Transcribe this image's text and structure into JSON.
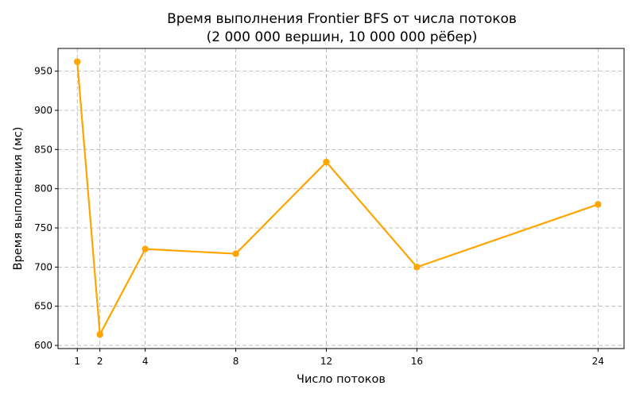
{
  "chart_data": {
    "type": "line",
    "title": "Время выполнения Frontier BFS от числа потоков",
    "subtitle": "(2 000 000 вершин, 10 000 000 рёбер)",
    "xlabel": "Число потоков",
    "ylabel": "Время выполнения (мс)",
    "x": [
      1,
      2,
      4,
      8,
      12,
      16,
      24
    ],
    "x_ticks": [
      1,
      2,
      4,
      8,
      12,
      16,
      24
    ],
    "y_ticks": [
      600,
      650,
      700,
      750,
      800,
      850,
      900,
      950
    ],
    "xlim": [
      0.15,
      25.15
    ],
    "ylim": [
      596,
      979
    ],
    "grid": true,
    "series": [
      {
        "color": "#ffa500",
        "values": [
          962,
          614,
          723,
          717,
          834,
          700,
          780
        ]
      }
    ]
  }
}
